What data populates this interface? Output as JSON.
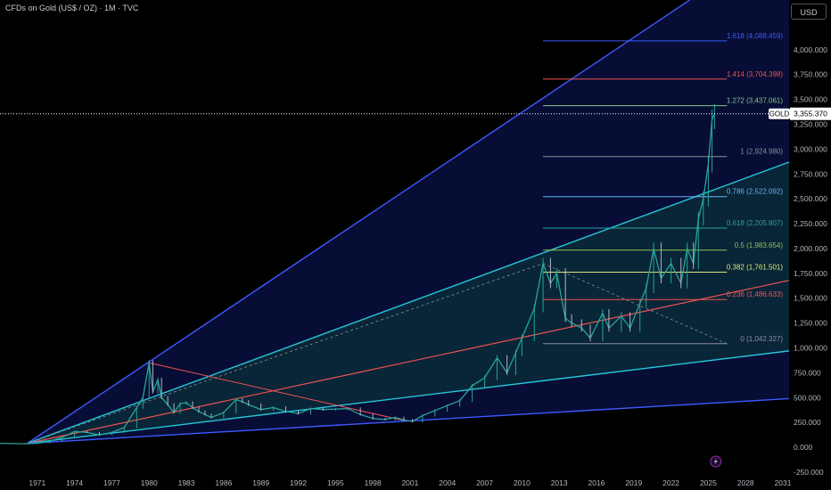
{
  "header": {
    "title": "CFDs on Gold (US$ / OZ) · 1M · TVC",
    "currency_button": "USD"
  },
  "current_price": {
    "symbol": "GOLD",
    "value": "3,355.370",
    "price": 3355.37
  },
  "colors": {
    "background": "#000000",
    "fan_outer": "#3d5afe",
    "fan_cyan": "#26c6da",
    "fan_red": "#ef5350",
    "fan_fill": "#0d1760",
    "fan_inner_fill": "#0b3a3a",
    "candle": "#26a69a",
    "candle_down": "#b2b5be"
  },
  "fib_levels": [
    {
      "ratio": 1.618,
      "label": "1.618 (4,088.459)",
      "price": 4088.459,
      "color": "#3d5afe"
    },
    {
      "ratio": 1.414,
      "label": "1.414 (3,704.398)",
      "price": 3704.398,
      "color": "#ef5350"
    },
    {
      "ratio": 1.272,
      "label": "1.272 (3,437.061)",
      "price": 3437.061,
      "color": "#81c784"
    },
    {
      "ratio": 1,
      "label": "1 (2,924.980)",
      "price": 2924.98,
      "color": "#8a8f99"
    },
    {
      "ratio": 0.786,
      "label": "0.786 (2,522.092)",
      "price": 2522.092,
      "color": "#64b5f6"
    },
    {
      "ratio": 0.618,
      "label": "0.618 (2,205.807)",
      "price": 2205.807,
      "color": "#26a69a"
    },
    {
      "ratio": 0.5,
      "label": "0.5 (1,983.654)",
      "price": 1983.654,
      "color": "#8bc34a"
    },
    {
      "ratio": 0.382,
      "label": "0.382 (1,761.501)",
      "price": 1761.501,
      "color": "#dce775"
    },
    {
      "ratio": 0.236,
      "label": "0.236 (1,486.633)",
      "price": 1486.633,
      "color": "#ef5350"
    },
    {
      "ratio": 0,
      "label": "0 (1,042.327)",
      "price": 1042.327,
      "color": "#8a8f99"
    }
  ],
  "chart_data": {
    "type": "line",
    "title": "CFDs on Gold (US$ / OZ) · 1M · TVC",
    "xlabel": "",
    "ylabel": "",
    "ylim": [
      -250,
      4500
    ],
    "xlim": [
      1968.0,
      2031.5
    ],
    "grid": false,
    "y_ticks": [
      {
        "value": 4000,
        "label": "4,000.000"
      },
      {
        "value": 3750,
        "label": "3,750.000"
      },
      {
        "value": 3500,
        "label": "3,500.000"
      },
      {
        "value": 3250,
        "label": "3,250.000"
      },
      {
        "value": 3000,
        "label": "3,000.000"
      },
      {
        "value": 2750,
        "label": "2,750.000"
      },
      {
        "value": 2500,
        "label": "2,500.000"
      },
      {
        "value": 2250,
        "label": "2,250.000"
      },
      {
        "value": 2000,
        "label": "2,000.000"
      },
      {
        "value": 1750,
        "label": "1,750.000"
      },
      {
        "value": 1500,
        "label": "1,500.000"
      },
      {
        "value": 1250,
        "label": "1,250.000"
      },
      {
        "value": 1000,
        "label": "1,000.000"
      },
      {
        "value": 750,
        "label": "750.000"
      },
      {
        "value": 500,
        "label": "500.000"
      },
      {
        "value": 250,
        "label": "250.000"
      },
      {
        "value": 0,
        "label": "0.000"
      },
      {
        "value": -250,
        "label": "-250.000"
      }
    ],
    "x_ticks": [
      {
        "value": 1971,
        "label": "1971"
      },
      {
        "value": 1974,
        "label": "1974"
      },
      {
        "value": 1977,
        "label": "1977"
      },
      {
        "value": 1980,
        "label": "1980"
      },
      {
        "value": 1983,
        "label": "1983"
      },
      {
        "value": 1986,
        "label": "1986"
      },
      {
        "value": 1989,
        "label": "1989"
      },
      {
        "value": 1992,
        "label": "1992"
      },
      {
        "value": 1995,
        "label": "1995"
      },
      {
        "value": 1998,
        "label": "1998"
      },
      {
        "value": 2001,
        "label": "2001"
      },
      {
        "value": 2004,
        "label": "2004"
      },
      {
        "value": 2007,
        "label": "2007"
      },
      {
        "value": 2010,
        "label": "2010"
      },
      {
        "value": 2013,
        "label": "2013"
      },
      {
        "value": 2016,
        "label": "2016"
      },
      {
        "value": 2019,
        "label": "2019"
      },
      {
        "value": 2022,
        "label": "2022"
      },
      {
        "value": 2025,
        "label": "2025"
      },
      {
        "value": 2028,
        "label": "2028"
      },
      {
        "value": 2031,
        "label": "2031"
      }
    ],
    "series": [
      {
        "values": [
          [
            1968.0,
            40
          ],
          [
            1970.0,
            36
          ],
          [
            1971.0,
            40
          ],
          [
            1972.0,
            60
          ],
          [
            1973.0,
            100
          ],
          [
            1974.0,
            160
          ],
          [
            1975.0,
            150
          ],
          [
            1976.0,
            125
          ],
          [
            1977.0,
            150
          ],
          [
            1978.0,
            200
          ],
          [
            1979.0,
            400
          ],
          [
            1979.5,
            500
          ],
          [
            1980.0,
            850
          ],
          [
            1980.3,
            560
          ],
          [
            1980.7,
            680
          ],
          [
            1981.0,
            500
          ],
          [
            1981.5,
            430
          ],
          [
            1982.0,
            350
          ],
          [
            1982.5,
            440
          ],
          [
            1983.0,
            450
          ],
          [
            1983.5,
            400
          ],
          [
            1984.0,
            360
          ],
          [
            1984.5,
            330
          ],
          [
            1985.0,
            300
          ],
          [
            1986.0,
            350
          ],
          [
            1987.0,
            480
          ],
          [
            1987.5,
            460
          ],
          [
            1988.0,
            430
          ],
          [
            1989.0,
            380
          ],
          [
            1990.0,
            400
          ],
          [
            1991.0,
            360
          ],
          [
            1992.0,
            340
          ],
          [
            1993.0,
            390
          ],
          [
            1994.0,
            380
          ],
          [
            1995.0,
            385
          ],
          [
            1996.0,
            390
          ],
          [
            1997.0,
            330
          ],
          [
            1998.0,
            290
          ],
          [
            1999.0,
            280
          ],
          [
            1999.8,
            300
          ],
          [
            2000.5,
            275
          ],
          [
            2001.2,
            260
          ],
          [
            2002.0,
            320
          ],
          [
            2003.0,
            370
          ],
          [
            2004.0,
            420
          ],
          [
            2005.0,
            470
          ],
          [
            2006.0,
            620
          ],
          [
            2007.0,
            700
          ],
          [
            2008.0,
            900
          ],
          [
            2008.8,
            750
          ],
          [
            2009.5,
            950
          ],
          [
            2010.0,
            1100
          ],
          [
            2011.0,
            1400
          ],
          [
            2011.7,
            1850
          ],
          [
            2012.3,
            1650
          ],
          [
            2012.8,
            1750
          ],
          [
            2013.5,
            1300
          ],
          [
            2014.0,
            1250
          ],
          [
            2014.8,
            1200
          ],
          [
            2015.5,
            1100
          ],
          [
            2016.5,
            1350
          ],
          [
            2017.0,
            1200
          ],
          [
            2018.0,
            1320
          ],
          [
            2018.7,
            1200
          ],
          [
            2019.5,
            1450
          ],
          [
            2020.0,
            1600
          ],
          [
            2020.6,
            2000
          ],
          [
            2021.2,
            1700
          ],
          [
            2022.0,
            1850
          ],
          [
            2022.8,
            1650
          ],
          [
            2023.3,
            2000
          ],
          [
            2023.8,
            1850
          ],
          [
            2024.2,
            2300
          ],
          [
            2024.6,
            2500
          ],
          [
            2025.0,
            2850
          ],
          [
            2025.3,
            3300
          ],
          [
            2025.5,
            3355.37
          ]
        ]
      }
    ]
  }
}
